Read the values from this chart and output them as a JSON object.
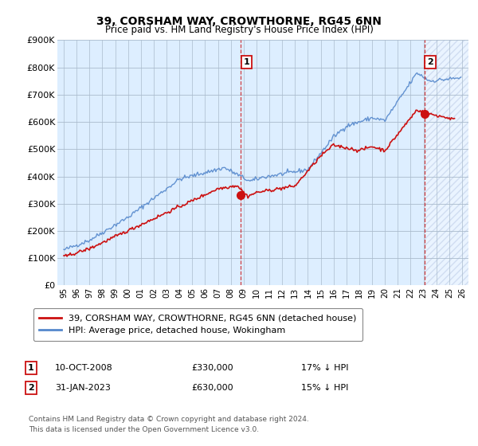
{
  "title": "39, CORSHAM WAY, CROWTHORNE, RG45 6NN",
  "subtitle": "Price paid vs. HM Land Registry's House Price Index (HPI)",
  "ylim": [
    0,
    900000
  ],
  "yticks": [
    0,
    100000,
    200000,
    300000,
    400000,
    500000,
    600000,
    700000,
    800000,
    900000
  ],
  "ytick_labels": [
    "£0",
    "£100K",
    "£200K",
    "£300K",
    "£400K",
    "£500K",
    "£600K",
    "£700K",
    "£800K",
    "£900K"
  ],
  "hpi_color": "#5588cc",
  "price_color": "#cc1111",
  "vline_color": "#cc1111",
  "background_color": "#ddeeff",
  "sale1": {
    "date_num": 2008.78,
    "price": 330000,
    "label": "1",
    "date_str": "10-OCT-2008",
    "pct": "17%"
  },
  "sale2": {
    "date_num": 2023.08,
    "price": 630000,
    "label": "2",
    "date_str": "31-JAN-2023",
    "pct": "15%"
  },
  "legend_line1": "39, CORSHAM WAY, CROWTHORNE, RG45 6NN (detached house)",
  "legend_line2": "HPI: Average price, detached house, Wokingham",
  "footer1": "Contains HM Land Registry data © Crown copyright and database right 2024.",
  "footer2": "This data is licensed under the Open Government Licence v3.0.",
  "xlim_start": 1994.5,
  "xlim_end": 2026.5
}
